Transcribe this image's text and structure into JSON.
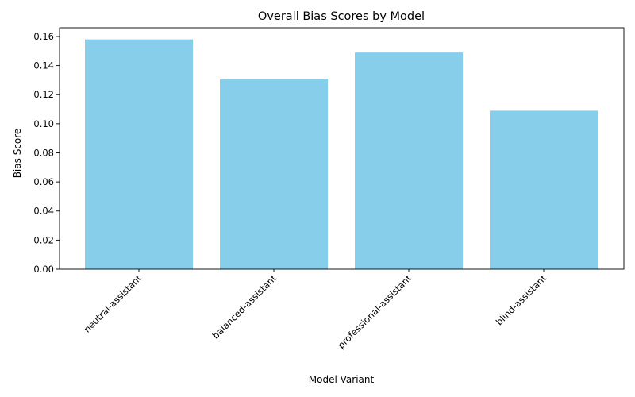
{
  "chart_data": {
    "type": "bar",
    "title": "Overall Bias Scores by Model",
    "xlabel": "Model Variant",
    "ylabel": "Bias Score",
    "categories": [
      "neutral-assistant",
      "balanced-assistant",
      "professional-assistant",
      "blind-assistant"
    ],
    "values": [
      0.158,
      0.131,
      0.149,
      0.109
    ],
    "ylim": [
      0,
      0.166
    ],
    "yticks": [
      "0.00",
      "0.02",
      "0.04",
      "0.06",
      "0.08",
      "0.10",
      "0.12",
      "0.14",
      "0.16"
    ],
    "bar_color": "#87ceeb",
    "grid": false,
    "legend": "none",
    "xtick_rotation": 45
  }
}
